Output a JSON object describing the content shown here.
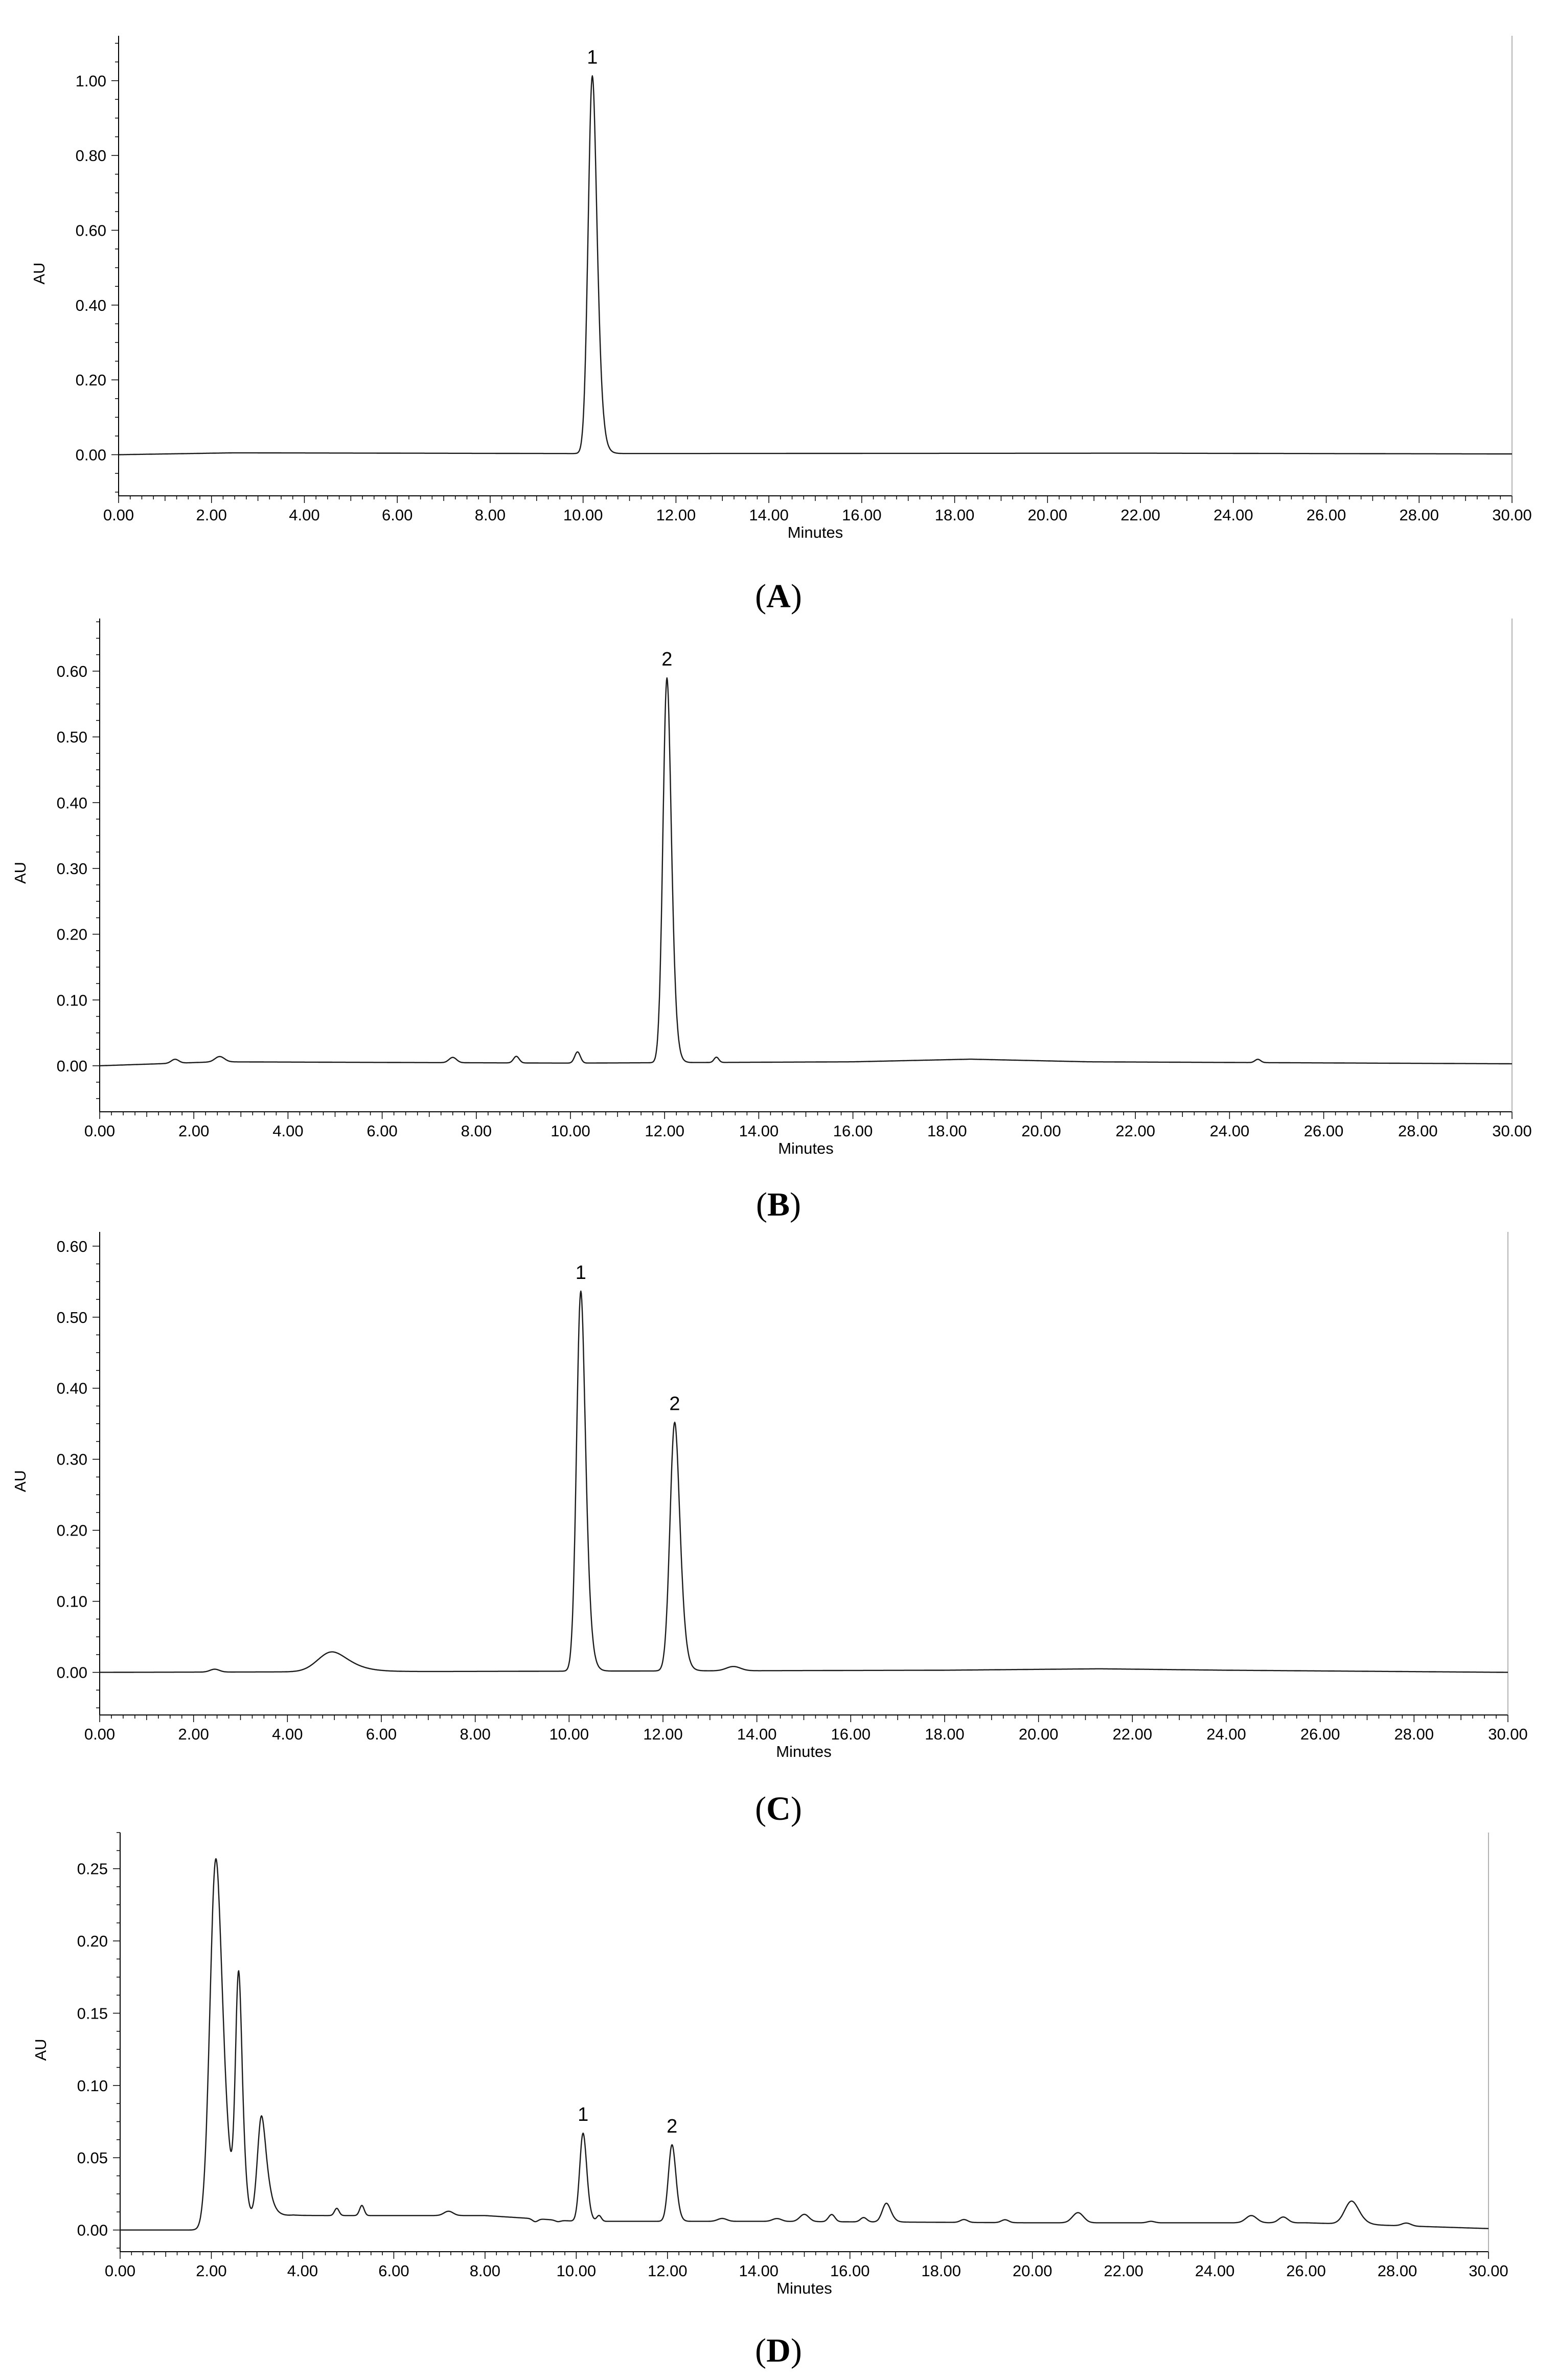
{
  "chart_data": [
    {
      "type": "line",
      "panel_label": "A",
      "xlabel": "Minutes",
      "ylabel": "AU",
      "xlim": [
        0,
        30
      ],
      "ylim": [
        -0.11,
        1.12
      ],
      "x_ticks": [
        0,
        2,
        4,
        6,
        8,
        10,
        12,
        14,
        16,
        18,
        20,
        22,
        24,
        26,
        28,
        30
      ],
      "x_tick_labels": [
        "0.00",
        "2.00",
        "4.00",
        "6.00",
        "8.00",
        "10.00",
        "12.00",
        "14.00",
        "16.00",
        "18.00",
        "20.00",
        "22.00",
        "24.00",
        "26.00",
        "28.00",
        "30.00"
      ],
      "y_ticks": [
        0,
        0.2,
        0.4,
        0.6,
        0.8,
        1.0
      ],
      "y_tick_labels": [
        "0.00",
        "0.20",
        "0.40",
        "0.60",
        "0.80",
        "1.00"
      ],
      "baseline": 0.0,
      "drift": [
        [
          0,
          0
        ],
        [
          2.5,
          0.005
        ],
        [
          10,
          0.003
        ],
        [
          22,
          0.004
        ],
        [
          30,
          0.002
        ]
      ],
      "peaks": [
        {
          "x": 10.2,
          "y": 1.01,
          "width": 0.09,
          "tail": 0.04,
          "label": "1"
        }
      ]
    },
    {
      "type": "line",
      "panel_label": "B",
      "xlabel": "Minutes",
      "ylabel": "AU",
      "xlim": [
        0,
        30
      ],
      "ylim": [
        -0.07,
        0.68
      ],
      "x_ticks": [
        0,
        2,
        4,
        6,
        8,
        10,
        12,
        14,
        16,
        18,
        20,
        22,
        24,
        26,
        28,
        30
      ],
      "x_tick_labels": [
        "0.00",
        "2.00",
        "4.00",
        "6.00",
        "8.00",
        "10.00",
        "12.00",
        "14.00",
        "16.00",
        "18.00",
        "20.00",
        "22.00",
        "24.00",
        "26.00",
        "28.00",
        "30.00"
      ],
      "y_ticks": [
        0,
        0.1,
        0.2,
        0.3,
        0.4,
        0.5,
        0.6
      ],
      "y_tick_labels": [
        "0.00",
        "0.10",
        "0.20",
        "0.30",
        "0.40",
        "0.50",
        "0.60"
      ],
      "baseline": 0.0,
      "drift": [
        [
          0,
          0
        ],
        [
          2.5,
          0.006
        ],
        [
          10,
          0.004
        ],
        [
          16,
          0.006
        ],
        [
          18.5,
          0.01
        ],
        [
          21,
          0.006
        ],
        [
          30,
          0.003
        ]
      ],
      "peaks": [
        {
          "x": 1.6,
          "y": 0.006,
          "width": 0.08,
          "tail": 0
        },
        {
          "x": 2.55,
          "y": 0.008,
          "width": 0.1,
          "tail": 0
        },
        {
          "x": 7.5,
          "y": 0.008,
          "width": 0.08,
          "tail": 0
        },
        {
          "x": 8.85,
          "y": 0.01,
          "width": 0.06,
          "tail": 0
        },
        {
          "x": 10.15,
          "y": 0.017,
          "width": 0.06,
          "tail": 0
        },
        {
          "x": 12.05,
          "y": 0.585,
          "width": 0.085,
          "tail": 0.03,
          "label": "2"
        },
        {
          "x": 13.1,
          "y": 0.008,
          "width": 0.05,
          "tail": 0
        },
        {
          "x": 24.6,
          "y": 0.005,
          "width": 0.06,
          "tail": 0
        }
      ]
    },
    {
      "type": "line",
      "panel_label": "C",
      "xlabel": "Minutes",
      "ylabel": "AU",
      "xlim": [
        0,
        30
      ],
      "ylim": [
        -0.06,
        0.62
      ],
      "x_ticks": [
        0,
        2,
        4,
        6,
        8,
        10,
        12,
        14,
        16,
        18,
        20,
        22,
        24,
        26,
        28,
        30
      ],
      "x_tick_labels": [
        "0.00",
        "2.00",
        "4.00",
        "6.00",
        "8.00",
        "10.00",
        "12.00",
        "14.00",
        "16.00",
        "18.00",
        "20.00",
        "22.00",
        "24.00",
        "26.00",
        "28.00",
        "30.00"
      ],
      "y_ticks": [
        0,
        0.1,
        0.2,
        0.3,
        0.4,
        0.5,
        0.6
      ],
      "y_tick_labels": [
        "0.00",
        "0.10",
        "0.20",
        "0.30",
        "0.40",
        "0.50",
        "0.60"
      ],
      "baseline": 0.0,
      "drift": [
        [
          0,
          0
        ],
        [
          18,
          0.003
        ],
        [
          21.3,
          0.005
        ],
        [
          24,
          0.003
        ],
        [
          30,
          0.0
        ]
      ],
      "peaks": [
        {
          "x": 2.45,
          "y": 0.004,
          "width": 0.1,
          "tail": 0
        },
        {
          "x": 4.95,
          "y": 0.028,
          "width": 0.3,
          "tail": 0.2
        },
        {
          "x": 10.25,
          "y": 0.535,
          "width": 0.09,
          "tail": 0.04,
          "label": "1"
        },
        {
          "x": 12.25,
          "y": 0.35,
          "width": 0.1,
          "tail": 0.04,
          "label": "2"
        },
        {
          "x": 13.5,
          "y": 0.006,
          "width": 0.15,
          "tail": 0
        }
      ]
    },
    {
      "type": "line",
      "panel_label": "D",
      "xlabel": "Minutes",
      "ylabel": "AU",
      "xlim": [
        0,
        30
      ],
      "ylim": [
        -0.015,
        0.275
      ],
      "x_ticks": [
        0,
        2,
        4,
        6,
        8,
        10,
        12,
        14,
        16,
        18,
        20,
        22,
        24,
        26,
        28,
        30
      ],
      "x_tick_labels": [
        "0.00",
        "2.00",
        "4.00",
        "6.00",
        "8.00",
        "10.00",
        "12.00",
        "14.00",
        "16.00",
        "18.00",
        "20.00",
        "22.00",
        "24.00",
        "26.00",
        "28.00",
        "30.00"
      ],
      "y_ticks": [
        0,
        0.05,
        0.1,
        0.15,
        0.2,
        0.25
      ],
      "y_tick_labels": [
        "0.00",
        "0.05",
        "0.10",
        "0.15",
        "0.20",
        "0.25"
      ],
      "baseline": 0.0,
      "drift": [
        [
          0,
          0
        ],
        [
          1.7,
          0.0
        ],
        [
          3.8,
          0.01
        ],
        [
          6,
          0.01
        ],
        [
          8,
          0.01
        ],
        [
          10,
          0.006
        ],
        [
          14,
          0.006
        ],
        [
          20,
          0.005
        ],
        [
          26,
          0.005
        ],
        [
          28,
          0.003
        ],
        [
          30,
          0.001
        ]
      ],
      "peaks": [
        {
          "x": 2.1,
          "y": 0.255,
          "width": 0.13,
          "tail": 0.08
        },
        {
          "x": 2.6,
          "y": 0.165,
          "width": 0.07,
          "tail": 0.04
        },
        {
          "x": 3.1,
          "y": 0.072,
          "width": 0.09,
          "tail": 0.08
        },
        {
          "x": 4.75,
          "y": 0.005,
          "width": 0.05,
          "tail": 0
        },
        {
          "x": 5.3,
          "y": 0.007,
          "width": 0.05,
          "tail": 0
        },
        {
          "x": 7.2,
          "y": 0.003,
          "width": 0.1,
          "tail": 0
        },
        {
          "x": 9.1,
          "y": -0.002,
          "width": 0.06,
          "tail": 0
        },
        {
          "x": 9.6,
          "y": -0.001,
          "width": 0.06,
          "tail": 0
        },
        {
          "x": 10.15,
          "y": 0.061,
          "width": 0.075,
          "tail": 0.02,
          "label": "1"
        },
        {
          "x": 10.5,
          "y": 0.004,
          "width": 0.05,
          "tail": 0
        },
        {
          "x": 12.1,
          "y": 0.053,
          "width": 0.08,
          "tail": 0.02,
          "label": "2"
        },
        {
          "x": 13.2,
          "y": 0.002,
          "width": 0.1,
          "tail": 0
        },
        {
          "x": 14.4,
          "y": 0.002,
          "width": 0.1,
          "tail": 0
        },
        {
          "x": 15.0,
          "y": 0.005,
          "width": 0.1,
          "tail": 0
        },
        {
          "x": 15.6,
          "y": 0.005,
          "width": 0.07,
          "tail": 0
        },
        {
          "x": 16.3,
          "y": 0.003,
          "width": 0.07,
          "tail": 0
        },
        {
          "x": 16.8,
          "y": 0.013,
          "width": 0.09,
          "tail": 0.03
        },
        {
          "x": 18.5,
          "y": 0.002,
          "width": 0.08,
          "tail": 0
        },
        {
          "x": 19.4,
          "y": 0.002,
          "width": 0.08,
          "tail": 0
        },
        {
          "x": 21.0,
          "y": 0.007,
          "width": 0.12,
          "tail": 0
        },
        {
          "x": 22.6,
          "y": 0.001,
          "width": 0.08,
          "tail": 0
        },
        {
          "x": 24.8,
          "y": 0.005,
          "width": 0.12,
          "tail": 0
        },
        {
          "x": 25.5,
          "y": 0.004,
          "width": 0.1,
          "tail": 0
        },
        {
          "x": 27.0,
          "y": 0.016,
          "width": 0.15,
          "tail": 0.05
        },
        {
          "x": 28.2,
          "y": 0.002,
          "width": 0.1,
          "tail": 0
        }
      ]
    }
  ],
  "colors": {
    "trace": "#1a1a1a",
    "axis": "#000000",
    "background": "#ffffff"
  }
}
